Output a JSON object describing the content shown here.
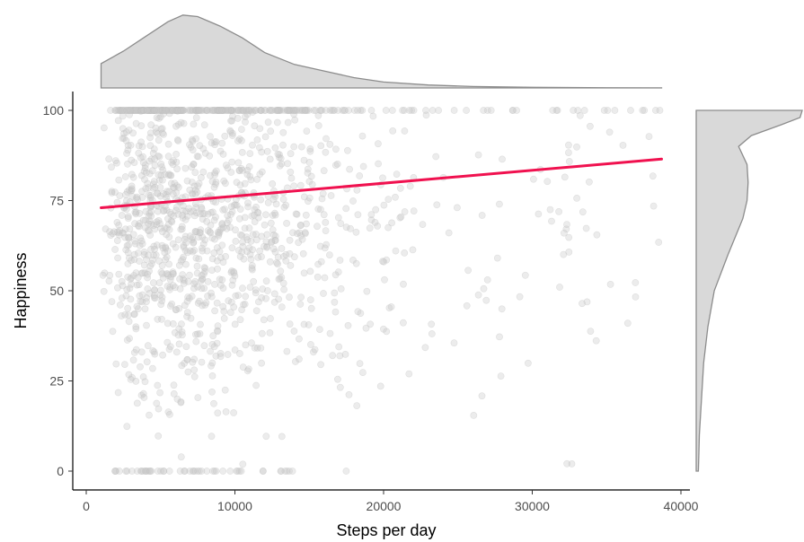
{
  "chart_data": {
    "type": "scatter",
    "title": "",
    "xlabel": "Steps per day",
    "ylabel": "Happiness",
    "xlim": [
      -1000,
      40500
    ],
    "ylim": [
      -3,
      104
    ],
    "x_ticks": [
      0,
      10000,
      20000,
      30000,
      40000
    ],
    "y_ticks": [
      0,
      25,
      50,
      75,
      100
    ],
    "x_tick_labels": [
      "0",
      "10000",
      "20000",
      "30000",
      "40000"
    ],
    "y_tick_labels": [
      "0",
      "25",
      "50",
      "75",
      "100"
    ],
    "grid": false,
    "legend": "none",
    "point_color": "#c8c8c8",
    "trend_color": "#f0114f",
    "density_fill": "#d9d9d9",
    "density_line": "#8c8c8c",
    "trend_line": {
      "x": [
        1000,
        38700
      ],
      "y": [
        73,
        86.5
      ]
    },
    "points_approx": {
      "n": 1500,
      "x_range": [
        1000,
        38700
      ],
      "y_range": [
        0,
        100
      ],
      "note": "dense cloud concentrated 3000-16000 steps, 45-100 happiness; ceiling at 100 and floor at 0"
    },
    "marginal_x_density": {
      "x": [
        1000,
        2500,
        4000,
        5500,
        6500,
        7500,
        9000,
        10500,
        12000,
        14000,
        16000,
        18000,
        20000,
        23000,
        26000,
        30000,
        35000,
        38700
      ],
      "density": [
        0.33,
        0.5,
        0.7,
        0.9,
        0.99,
        0.97,
        0.84,
        0.68,
        0.48,
        0.32,
        0.23,
        0.14,
        0.08,
        0.04,
        0.02,
        0.008,
        0.003,
        0.001
      ]
    },
    "marginal_y_density": {
      "y": [
        0,
        5,
        10,
        20,
        30,
        40,
        50,
        60,
        70,
        75,
        80,
        85,
        90,
        93,
        96,
        98,
        100
      ],
      "density": [
        0.02,
        0.025,
        0.03,
        0.05,
        0.07,
        0.11,
        0.17,
        0.3,
        0.44,
        0.48,
        0.49,
        0.48,
        0.4,
        0.52,
        0.8,
        0.98,
        1.0
      ]
    }
  }
}
